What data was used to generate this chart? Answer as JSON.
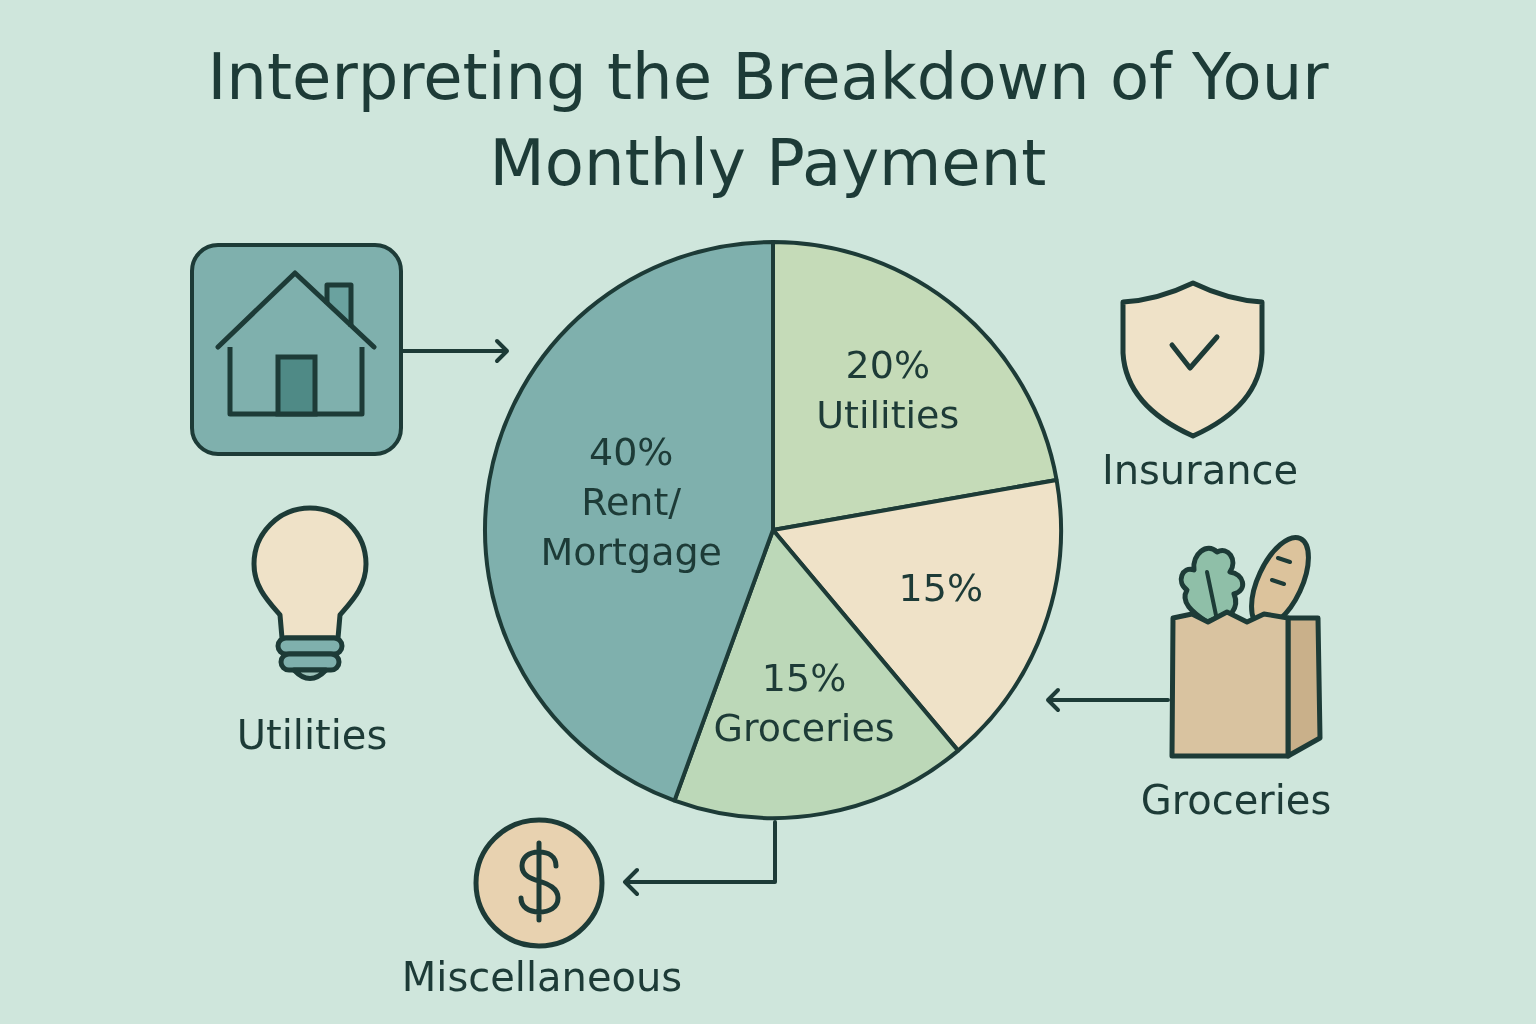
{
  "chart_data": {
    "type": "pie",
    "title": "Interpreting the Breakdown of Your Monthly Payment",
    "categories": [
      "Utilities",
      null,
      "Groceries",
      "Rent/Mortgage"
    ],
    "values": [
      20,
      15,
      15,
      40
    ],
    "value_labels": [
      "20%",
      "15%",
      "15%",
      "40%"
    ],
    "colors": [
      "#c5dbb8",
      "#efe2c8",
      "#bcd8b8",
      "#7fb0ad"
    ],
    "annotations": [
      "Insurance",
      "Utilities",
      "Groceries",
      "Miscellaneous"
    ]
  }
}
